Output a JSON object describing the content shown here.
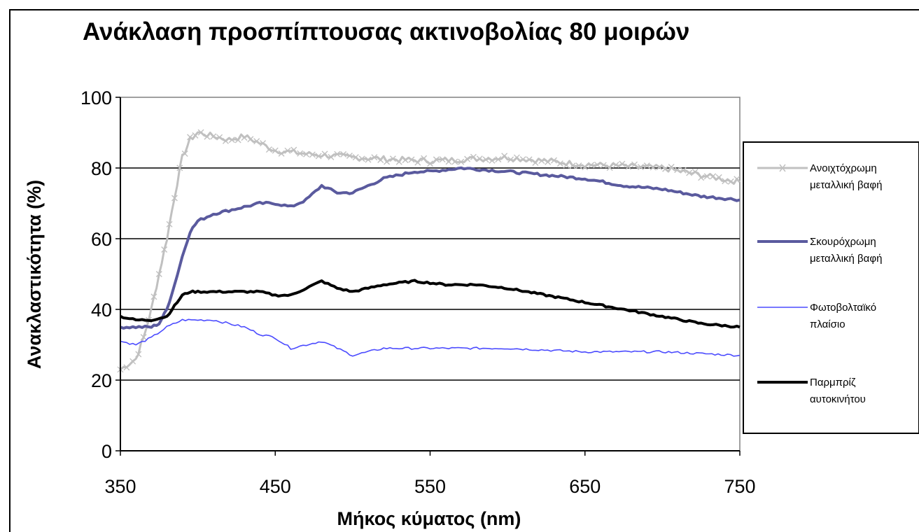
{
  "chart_data": {
    "type": "line",
    "title": "Ανάκλαση προσπίπτουσας ακτινοβολίας 80 μοιρών",
    "xlabel": "Μήκος κύματος (nm)",
    "ylabel": "Ανακλαστικότητα (%)",
    "xlim": [
      350,
      750
    ],
    "ylim": [
      0,
      100
    ],
    "xticks": [
      350,
      450,
      550,
      650,
      750
    ],
    "yticks": [
      0,
      20,
      40,
      60,
      80,
      100
    ],
    "grid": "horizontal",
    "legend_position": "right",
    "series": [
      {
        "name": "Ανοιχτόχρωμη μεταλλική βαφή",
        "color": "#c0c0c0",
        "marker": "x",
        "points": [
          [
            350,
            23
          ],
          [
            360,
            26
          ],
          [
            365,
            32
          ],
          [
            370,
            40
          ],
          [
            375,
            50
          ],
          [
            380,
            60
          ],
          [
            385,
            72
          ],
          [
            390,
            83
          ],
          [
            395,
            88
          ],
          [
            400,
            90
          ],
          [
            410,
            89
          ],
          [
            420,
            88
          ],
          [
            430,
            89
          ],
          [
            440,
            87
          ],
          [
            450,
            85
          ],
          [
            470,
            84
          ],
          [
            500,
            83
          ],
          [
            550,
            82
          ],
          [
            600,
            83
          ],
          [
            650,
            81
          ],
          [
            700,
            80
          ],
          [
            725,
            78
          ],
          [
            750,
            76
          ]
        ]
      },
      {
        "name": "Σκουρόχρωμη μεταλλική βαφή",
        "color": "#5a5a9e",
        "points": [
          [
            350,
            35
          ],
          [
            360,
            35
          ],
          [
            370,
            35
          ],
          [
            375,
            36
          ],
          [
            380,
            40
          ],
          [
            385,
            47
          ],
          [
            390,
            55
          ],
          [
            395,
            62
          ],
          [
            400,
            65
          ],
          [
            410,
            67
          ],
          [
            420,
            68
          ],
          [
            430,
            69
          ],
          [
            440,
            70
          ],
          [
            450,
            70
          ],
          [
            460,
            69
          ],
          [
            470,
            71
          ],
          [
            480,
            75
          ],
          [
            490,
            73
          ],
          [
            500,
            73
          ],
          [
            510,
            75
          ],
          [
            520,
            77
          ],
          [
            530,
            78
          ],
          [
            540,
            79
          ],
          [
            550,
            79
          ],
          [
            570,
            80
          ],
          [
            600,
            79
          ],
          [
            625,
            78
          ],
          [
            650,
            77
          ],
          [
            675,
            75
          ],
          [
            700,
            74
          ],
          [
            725,
            72
          ],
          [
            750,
            71
          ]
        ]
      },
      {
        "name": "Φωτοβολταϊκό πλαίσιο",
        "color": "#4b4bff",
        "points": [
          [
            350,
            31
          ],
          [
            360,
            30
          ],
          [
            370,
            32
          ],
          [
            380,
            35
          ],
          [
            390,
            37
          ],
          [
            400,
            37
          ],
          [
            410,
            37
          ],
          [
            420,
            36
          ],
          [
            430,
            35
          ],
          [
            440,
            33
          ],
          [
            450,
            32
          ],
          [
            460,
            29
          ],
          [
            470,
            30
          ],
          [
            480,
            31
          ],
          [
            490,
            29
          ],
          [
            500,
            27
          ],
          [
            510,
            28
          ],
          [
            520,
            29
          ],
          [
            550,
            29
          ],
          [
            600,
            29
          ],
          [
            650,
            28
          ],
          [
            700,
            28
          ],
          [
            750,
            27
          ]
        ]
      },
      {
        "name": "Παρμπρίζ αυτοκινήτου",
        "color": "#000000",
        "points": [
          [
            350,
            38
          ],
          [
            360,
            37
          ],
          [
            370,
            37
          ],
          [
            380,
            38
          ],
          [
            385,
            41
          ],
          [
            390,
            44
          ],
          [
            395,
            45
          ],
          [
            400,
            45
          ],
          [
            420,
            45
          ],
          [
            440,
            45
          ],
          [
            450,
            44
          ],
          [
            460,
            44
          ],
          [
            470,
            46
          ],
          [
            480,
            48
          ],
          [
            490,
            46
          ],
          [
            500,
            45
          ],
          [
            510,
            46
          ],
          [
            520,
            47
          ],
          [
            540,
            48
          ],
          [
            560,
            47
          ],
          [
            580,
            47
          ],
          [
            600,
            46
          ],
          [
            625,
            44
          ],
          [
            650,
            42
          ],
          [
            675,
            40
          ],
          [
            700,
            38
          ],
          [
            725,
            36
          ],
          [
            750,
            35
          ]
        ]
      }
    ]
  },
  "legend": [
    {
      "line1": "Ανοιχτόχρωμη",
      "line2": "μεταλλική βαφή"
    },
    {
      "line1": "Σκουρόχρωμη",
      "line2": "μεταλλική βαφή"
    },
    {
      "line1": "Φωτοβολταϊκό",
      "line2": "πλαίσιο"
    },
    {
      "line1": "Παρμπρίζ",
      "line2": "αυτοκινήτου"
    }
  ]
}
